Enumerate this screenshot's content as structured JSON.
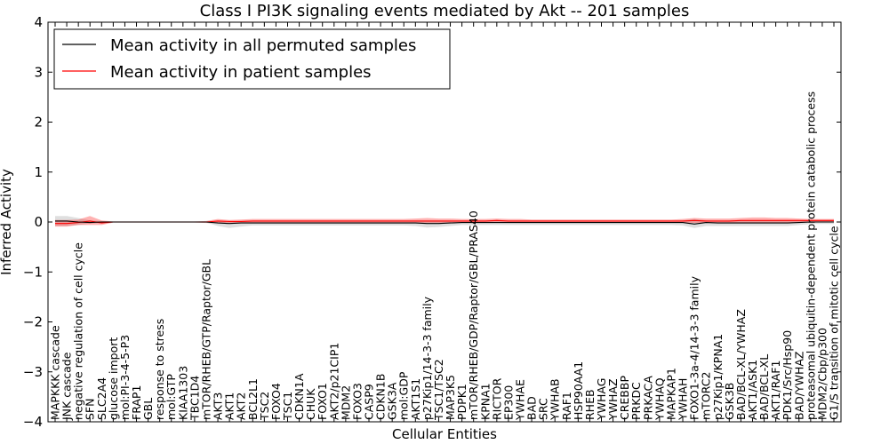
{
  "chart_data": {
    "type": "line",
    "title": "Class I PI3K signaling events mediated by Akt -- 201 samples",
    "xlabel": "Cellular Entities",
    "ylabel": "Inferred Activity",
    "ylim": [
      -4,
      4
    ],
    "yticks": [
      "−4",
      "−3",
      "−2",
      "−1",
      "0",
      "1",
      "2",
      "3",
      "4"
    ],
    "legend": {
      "location": "top-left",
      "entries": [
        {
          "label": "Mean activity in all permuted samples",
          "color": "#000000"
        },
        {
          "label": "Mean activity in patient samples",
          "color": "#ff0000"
        }
      ]
    },
    "categories": [
      "MAPKKK cascade",
      "JNK cascade",
      "negative regulation of cell cycle",
      "SFN",
      "SLC2A4",
      "glucose import",
      "mol:PI-3-4-5-P3",
      "FRAP1",
      "GBL",
      "response to stress",
      "mol:GTP",
      "KIAA1303",
      "TBC1D4",
      "mTOR/RHEB/GTP/Raptor/GBL",
      "AKT3",
      "AKT1",
      "AKT2",
      "BCL2L1",
      "TSC2",
      "FOXO4",
      "TSC1",
      "CDKN1A",
      "CHUK",
      "FOXO1",
      "AKT2/p21CIP1",
      "MDM2",
      "FOXO3",
      "CASP9",
      "CDKN1B",
      "GSK3A",
      "mol:GDP",
      "AKT1S1",
      "p27Kip1/14-3-3 family",
      "TSC1/TSC2",
      "MAP3K5",
      "PDPK1",
      "mTOR/RHEB/GDP/Raptor/GBL/PRAS40",
      "KPNA1",
      "RICTOR",
      "EP300",
      "YWHAE",
      "BAD",
      "SRC",
      "YWHAB",
      "RAF1",
      "HSP90AA1",
      "RHEB",
      "YWHAG",
      "YWHAZ",
      "CREBBP",
      "PRKDC",
      "PRKACA",
      "YWHAQ",
      "MAPKAP1",
      "YWHAH",
      "FOXO1-3a-4/14-3-3 family",
      "mTORC2",
      "p27Kip1/KPNA1",
      "GSK3B",
      "BAD/BCL-XL/YWHAZ",
      "AKT1/ASK1",
      "BAD/BCL-XL",
      "AKT1/RAF1",
      "PDK1/Src/Hsp90",
      "BAD/YWHAZ",
      "proteasomal ubiquitin-dependent protein catabolic process",
      "MDM2/Cbp/p300",
      "G1/S transition of mitotic cell cycle"
    ],
    "series": [
      {
        "name": "Mean activity in all permuted samples",
        "color": "#000000",
        "values": [
          0.02,
          0.02,
          0.0,
          -0.01,
          0.0,
          0.0,
          0.0,
          0.0,
          0.0,
          0.0,
          0.0,
          0.0,
          0.0,
          0.0,
          -0.02,
          -0.03,
          -0.02,
          -0.02,
          -0.02,
          -0.02,
          -0.02,
          -0.02,
          -0.02,
          -0.02,
          -0.02,
          -0.02,
          -0.02,
          -0.02,
          -0.02,
          -0.02,
          -0.02,
          -0.02,
          -0.03,
          -0.03,
          -0.02,
          -0.01,
          -0.01,
          -0.01,
          -0.01,
          -0.01,
          -0.01,
          -0.01,
          -0.01,
          -0.01,
          -0.01,
          -0.01,
          -0.01,
          -0.01,
          -0.01,
          -0.01,
          -0.01,
          -0.01,
          -0.01,
          -0.01,
          -0.01,
          -0.04,
          -0.01,
          -0.02,
          -0.02,
          -0.02,
          -0.02,
          -0.02,
          -0.02,
          -0.02,
          -0.01,
          0.0,
          0.0,
          0.0
        ],
        "band_upper": [
          0.12,
          0.12,
          0.08,
          0.03,
          0.02,
          0.01,
          0.01,
          0.01,
          0.01,
          0.01,
          0.01,
          0.01,
          0.01,
          0.01,
          0.02,
          0.01,
          0.02,
          0.02,
          0.02,
          0.02,
          0.02,
          0.02,
          0.02,
          0.02,
          0.02,
          0.02,
          0.02,
          0.02,
          0.02,
          0.02,
          0.02,
          0.02,
          0.02,
          0.02,
          0.02,
          0.02,
          0.02,
          0.02,
          0.02,
          0.02,
          0.02,
          0.02,
          0.02,
          0.02,
          0.02,
          0.02,
          0.02,
          0.02,
          0.02,
          0.02,
          0.02,
          0.02,
          0.02,
          0.02,
          0.03,
          0.06,
          0.03,
          0.02,
          0.03,
          0.03,
          0.03,
          0.03,
          0.03,
          0.03,
          0.03,
          0.02,
          0.02,
          0.02
        ],
        "band_lower": [
          -0.08,
          -0.08,
          -0.06,
          -0.03,
          -0.02,
          -0.01,
          -0.01,
          -0.01,
          -0.01,
          -0.01,
          -0.01,
          -0.01,
          -0.01,
          -0.01,
          -0.08,
          -0.12,
          -0.09,
          -0.07,
          -0.07,
          -0.07,
          -0.07,
          -0.07,
          -0.07,
          -0.07,
          -0.07,
          -0.07,
          -0.07,
          -0.07,
          -0.07,
          -0.07,
          -0.07,
          -0.08,
          -0.11,
          -0.1,
          -0.08,
          -0.06,
          -0.06,
          -0.06,
          -0.06,
          -0.06,
          -0.06,
          -0.06,
          -0.06,
          -0.06,
          -0.06,
          -0.06,
          -0.06,
          -0.06,
          -0.06,
          -0.06,
          -0.06,
          -0.06,
          -0.06,
          -0.06,
          -0.07,
          -0.12,
          -0.08,
          -0.08,
          -0.08,
          -0.08,
          -0.08,
          -0.08,
          -0.08,
          -0.08,
          -0.06,
          -0.04,
          -0.04,
          -0.04
        ]
      },
      {
        "name": "Mean activity in patient samples",
        "color": "#ff0000",
        "values": [
          -0.03,
          -0.03,
          -0.01,
          0.02,
          -0.02,
          0.0,
          0.0,
          0.0,
          0.0,
          0.0,
          0.0,
          0.0,
          0.0,
          0.0,
          0.02,
          0.01,
          0.01,
          0.02,
          0.02,
          0.02,
          0.02,
          0.02,
          0.02,
          0.02,
          0.02,
          0.02,
          0.02,
          0.02,
          0.02,
          0.02,
          0.02,
          0.02,
          0.02,
          0.02,
          0.02,
          0.02,
          0.02,
          0.02,
          0.03,
          0.02,
          0.02,
          0.02,
          0.02,
          0.02,
          0.02,
          0.02,
          0.02,
          0.02,
          0.02,
          0.02,
          0.02,
          0.02,
          0.02,
          0.02,
          0.02,
          0.03,
          0.02,
          0.02,
          0.02,
          0.03,
          0.03,
          0.03,
          0.03,
          0.03,
          0.03,
          0.03,
          0.03,
          0.03
        ],
        "band_upper": [
          0.04,
          0.04,
          0.05,
          0.12,
          0.03,
          0.01,
          0.01,
          0.01,
          0.01,
          0.01,
          0.01,
          0.01,
          0.01,
          0.02,
          0.06,
          0.04,
          0.05,
          0.06,
          0.06,
          0.06,
          0.06,
          0.06,
          0.06,
          0.06,
          0.06,
          0.06,
          0.06,
          0.06,
          0.06,
          0.06,
          0.06,
          0.07,
          0.08,
          0.07,
          0.07,
          0.06,
          0.06,
          0.06,
          0.07,
          0.06,
          0.06,
          0.05,
          0.05,
          0.05,
          0.05,
          0.05,
          0.05,
          0.05,
          0.05,
          0.05,
          0.05,
          0.05,
          0.05,
          0.05,
          0.06,
          0.08,
          0.07,
          0.07,
          0.07,
          0.08,
          0.09,
          0.09,
          0.08,
          0.08,
          0.07,
          0.06,
          0.06,
          0.06
        ],
        "band_lower": [
          -0.09,
          -0.09,
          -0.06,
          -0.06,
          -0.06,
          -0.01,
          -0.01,
          -0.01,
          -0.01,
          -0.01,
          -0.01,
          -0.01,
          -0.01,
          -0.02,
          -0.02,
          -0.02,
          -0.02,
          -0.02,
          -0.02,
          -0.02,
          -0.02,
          -0.02,
          -0.02,
          -0.02,
          -0.02,
          -0.02,
          -0.02,
          -0.02,
          -0.02,
          -0.02,
          -0.02,
          -0.02,
          -0.02,
          -0.02,
          -0.02,
          -0.01,
          -0.01,
          -0.01,
          -0.01,
          -0.01,
          -0.01,
          -0.01,
          -0.01,
          -0.01,
          -0.01,
          -0.01,
          -0.01,
          -0.01,
          -0.01,
          -0.01,
          -0.01,
          -0.01,
          -0.01,
          -0.01,
          -0.01,
          -0.02,
          -0.02,
          -0.02,
          -0.02,
          -0.02,
          -0.02,
          -0.02,
          -0.02,
          -0.02,
          -0.01,
          0.0,
          0.0,
          0.0
        ]
      }
    ]
  }
}
